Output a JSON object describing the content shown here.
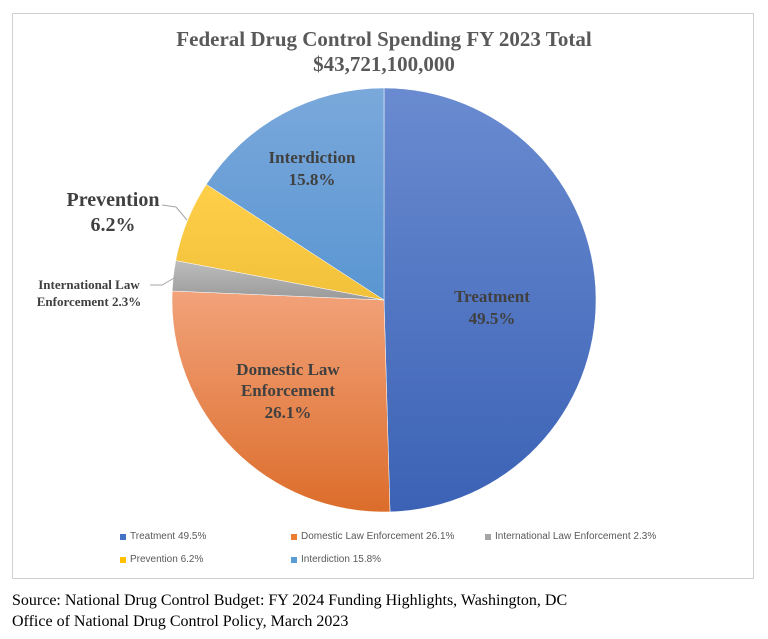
{
  "chart_data": {
    "type": "pie",
    "title": "Federal Drug Control Spending FY 2023 Total",
    "subtitle": "$43,721,100,000",
    "categories": [
      "Treatment",
      "Domestic Law Enforcement",
      "International Law Enforcement",
      "Prevention",
      "Interdiction"
    ],
    "values": [
      49.5,
      26.1,
      2.3,
      6.2,
      15.8
    ],
    "unit": "%",
    "colors": [
      "#4472c4",
      "#ed7d31",
      "#a5a5a5",
      "#ffc000",
      "#5b9bd5"
    ],
    "slice_labels": [
      [
        "Treatment",
        "49.5%"
      ],
      [
        "Domestic Law",
        "Enforcement",
        "26.1%"
      ],
      [
        "International Law",
        "Enforcement 2.3%"
      ],
      [
        "Prevention",
        "6.2%"
      ],
      [
        "Interdiction",
        "15.8%"
      ]
    ],
    "legend": [
      "Treatment 49.5%",
      "Domestic Law Enforcement 26.1%",
      "International Law Enforcement 2.3%",
      "Prevention 6.2%",
      "Interdiction 15.8%"
    ],
    "legend_position": "bottom"
  },
  "source": {
    "line1": "Source: National Drug Control Budget: FY 2024 Funding Highlights, Washington, DC",
    "line2": "Office of National Drug Control Policy, March 2023"
  }
}
